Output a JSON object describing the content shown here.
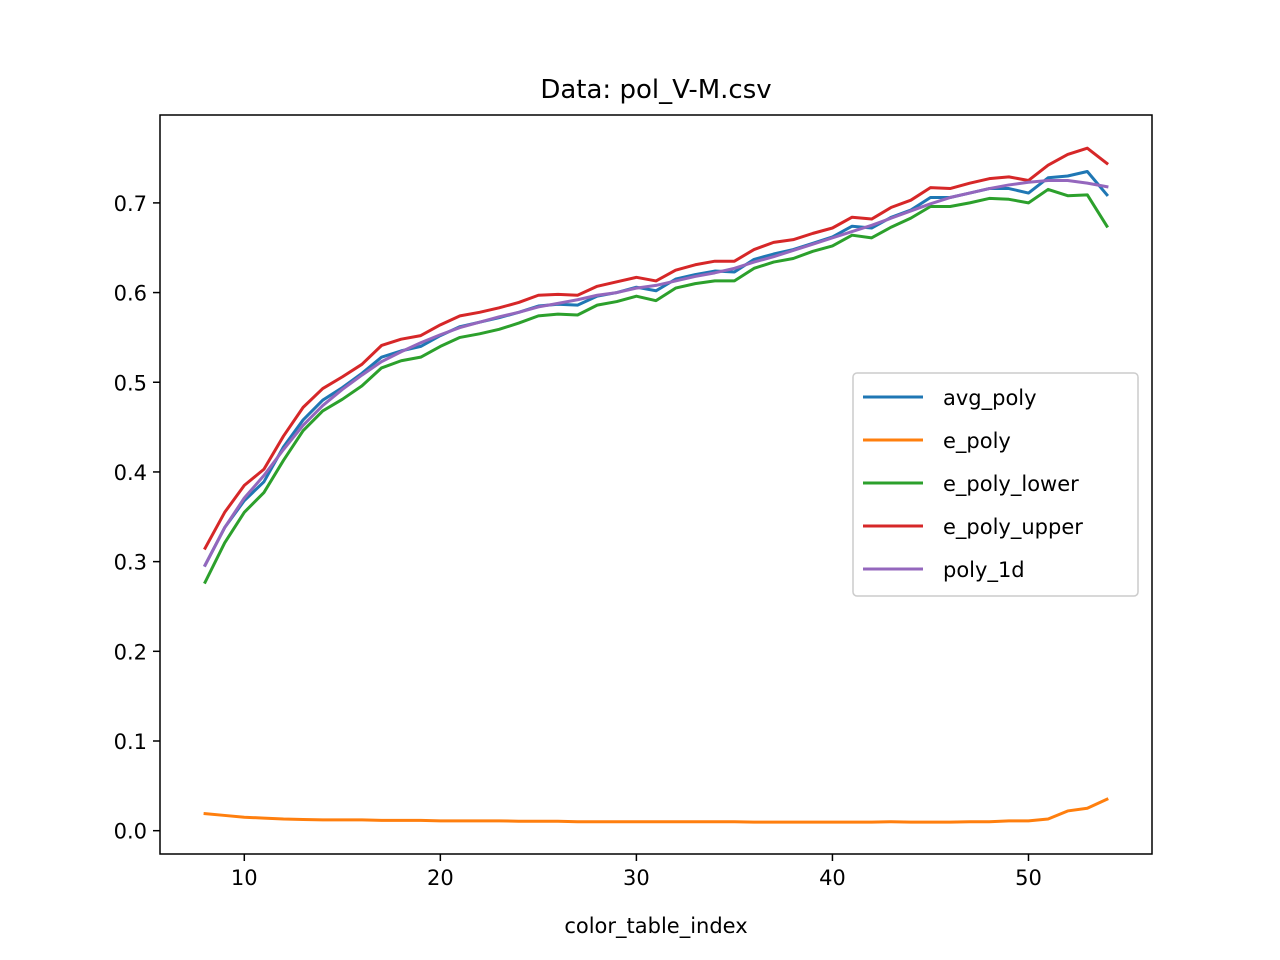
{
  "chart_data": {
    "type": "line",
    "title": "Data: pol_V-M.csv",
    "xlabel": "color_table_index",
    "ylabel": "",
    "xlim": [
      5.7,
      56.3
    ],
    "ylim": [
      -0.026,
      0.798
    ],
    "xticks": [
      10,
      20,
      30,
      40,
      50
    ],
    "xtick_labels": [
      "10",
      "20",
      "30",
      "40",
      "50"
    ],
    "yticks": [
      0.0,
      0.1,
      0.2,
      0.3,
      0.4,
      0.5,
      0.6,
      0.7
    ],
    "ytick_labels": [
      "0.0",
      "0.1",
      "0.2",
      "0.3",
      "0.4",
      "0.5",
      "0.6",
      "0.7"
    ],
    "grid": false,
    "legend_position": "center-right",
    "x": [
      8,
      9,
      10,
      11,
      12,
      13,
      14,
      15,
      16,
      17,
      18,
      19,
      20,
      21,
      22,
      23,
      24,
      25,
      26,
      27,
      28,
      29,
      30,
      31,
      32,
      33,
      34,
      35,
      36,
      37,
      38,
      39,
      40,
      41,
      42,
      43,
      44,
      45,
      46,
      47,
      48,
      49,
      50,
      51,
      52,
      53,
      54
    ],
    "series": [
      {
        "name": "avg_poly",
        "color": "#1f77b4",
        "values": [
          0.296,
          0.338,
          0.368,
          0.389,
          0.428,
          0.458,
          0.48,
          0.494,
          0.51,
          0.528,
          0.535,
          0.54,
          0.552,
          0.562,
          0.567,
          0.572,
          0.578,
          0.585,
          0.587,
          0.586,
          0.596,
          0.6,
          0.606,
          0.602,
          0.615,
          0.62,
          0.624,
          0.623,
          0.637,
          0.643,
          0.648,
          0.655,
          0.662,
          0.674,
          0.672,
          0.684,
          0.692,
          0.706,
          0.706,
          0.711,
          0.716,
          0.716,
          0.711,
          0.728,
          0.73,
          0.735,
          0.709
        ]
      },
      {
        "name": "e_poly",
        "color": "#ff7f0e",
        "values": [
          0.019,
          0.017,
          0.015,
          0.014,
          0.013,
          0.0125,
          0.012,
          0.012,
          0.012,
          0.0115,
          0.0115,
          0.0115,
          0.011,
          0.011,
          0.011,
          0.011,
          0.0105,
          0.0105,
          0.0105,
          0.01,
          0.01,
          0.01,
          0.01,
          0.01,
          0.01,
          0.01,
          0.01,
          0.01,
          0.0095,
          0.0095,
          0.0095,
          0.0095,
          0.0095,
          0.0095,
          0.0095,
          0.01,
          0.0095,
          0.0095,
          0.0095,
          0.01,
          0.01,
          0.011,
          0.011,
          0.013,
          0.022,
          0.025,
          0.035
        ]
      },
      {
        "name": "e_poly_lower",
        "color": "#2ca02c",
        "values": [
          0.277,
          0.321,
          0.355,
          0.377,
          0.413,
          0.446,
          0.468,
          0.481,
          0.496,
          0.516,
          0.524,
          0.528,
          0.54,
          0.55,
          0.554,
          0.559,
          0.566,
          0.574,
          0.576,
          0.575,
          0.586,
          0.59,
          0.596,
          0.591,
          0.605,
          0.61,
          0.613,
          0.613,
          0.627,
          0.634,
          0.638,
          0.646,
          0.652,
          0.664,
          0.661,
          0.673,
          0.683,
          0.696,
          0.696,
          0.7,
          0.705,
          0.704,
          0.7,
          0.715,
          0.708,
          0.709,
          0.674
        ]
      },
      {
        "name": "e_poly_upper",
        "color": "#d62728",
        "values": [
          0.315,
          0.355,
          0.385,
          0.403,
          0.44,
          0.472,
          0.493,
          0.506,
          0.52,
          0.541,
          0.548,
          0.552,
          0.564,
          0.574,
          0.578,
          0.583,
          0.589,
          0.597,
          0.598,
          0.597,
          0.607,
          0.612,
          0.617,
          0.613,
          0.625,
          0.631,
          0.635,
          0.635,
          0.648,
          0.656,
          0.659,
          0.666,
          0.672,
          0.684,
          0.682,
          0.695,
          0.703,
          0.717,
          0.716,
          0.722,
          0.727,
          0.729,
          0.725,
          0.742,
          0.754,
          0.761,
          0.744
        ]
      },
      {
        "name": "poly_1d",
        "color": "#9467bd",
        "values": [
          0.296,
          0.338,
          0.371,
          0.396,
          0.425,
          0.452,
          0.474,
          0.492,
          0.508,
          0.523,
          0.534,
          0.544,
          0.553,
          0.561,
          0.567,
          0.573,
          0.578,
          0.584,
          0.588,
          0.592,
          0.597,
          0.6,
          0.605,
          0.608,
          0.613,
          0.618,
          0.622,
          0.627,
          0.634,
          0.64,
          0.647,
          0.654,
          0.661,
          0.668,
          0.675,
          0.683,
          0.691,
          0.699,
          0.706,
          0.711,
          0.716,
          0.72,
          0.723,
          0.725,
          0.725,
          0.722,
          0.718
        ]
      }
    ]
  }
}
